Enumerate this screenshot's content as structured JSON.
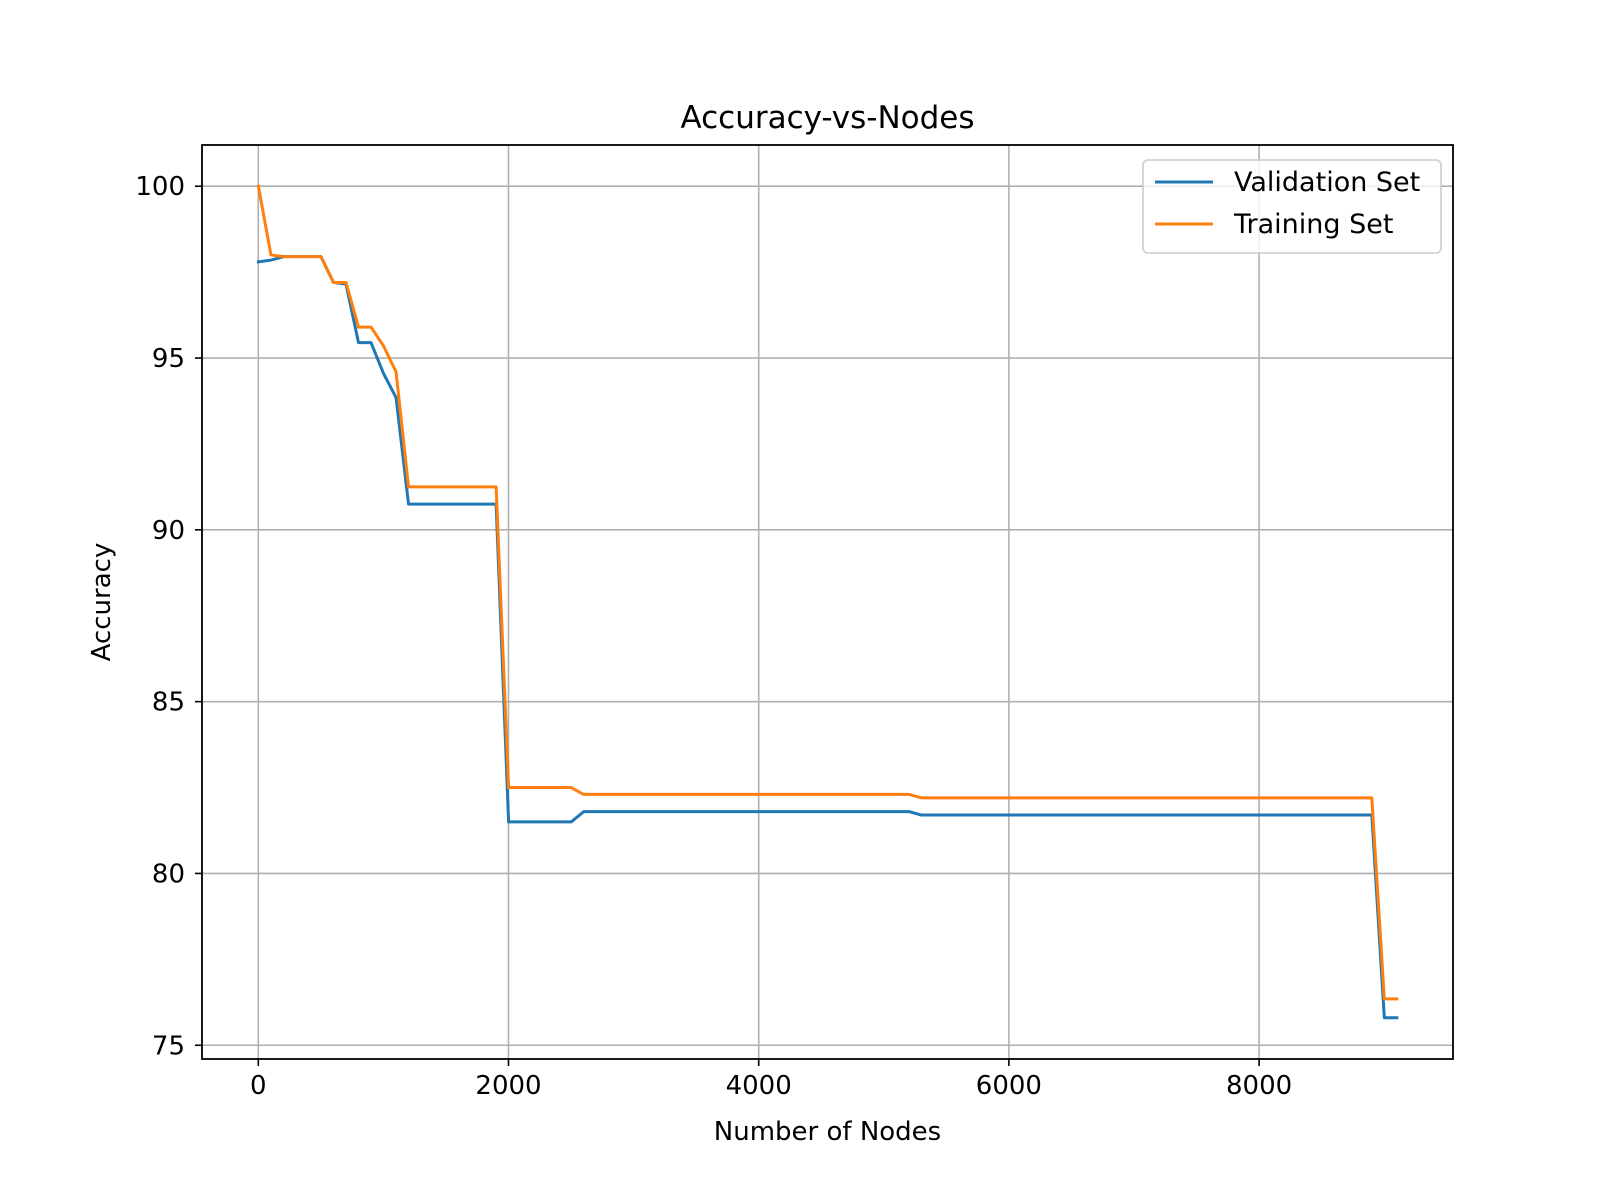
{
  "chart_data": {
    "type": "line",
    "title": "Accuracy-vs-Nodes",
    "xlabel": "Number of Nodes",
    "ylabel": "Accuracy",
    "xlim": [
      -450,
      9550
    ],
    "ylim": [
      74.6,
      101.2
    ],
    "xticks": [
      0,
      2000,
      4000,
      6000,
      8000
    ],
    "yticks": [
      75,
      80,
      85,
      90,
      95,
      100
    ],
    "grid": true,
    "legend_position": "upper right",
    "series": [
      {
        "name": "Validation Set",
        "color": "#1f77b4",
        "x": [
          1,
          101,
          201,
          301,
          401,
          501,
          601,
          701,
          801,
          901,
          1001,
          1101,
          1201,
          1301,
          1401,
          1501,
          1601,
          1701,
          1801,
          1901,
          2001,
          2101,
          2201,
          2301,
          2401,
          2501,
          2601,
          2701,
          3001,
          4001,
          5001,
          5201,
          5301,
          6001,
          7001,
          8001,
          8901,
          9001,
          9101
        ],
        "y": [
          97.8,
          97.85,
          97.95,
          97.95,
          97.95,
          97.95,
          97.2,
          97.15,
          95.45,
          95.45,
          94.55,
          93.85,
          90.75,
          90.75,
          90.75,
          90.75,
          90.75,
          90.75,
          90.75,
          90.75,
          81.5,
          81.5,
          81.5,
          81.5,
          81.5,
          81.5,
          81.8,
          81.8,
          81.8,
          81.8,
          81.8,
          81.8,
          81.7,
          81.7,
          81.7,
          81.7,
          81.7,
          75.8,
          75.8
        ]
      },
      {
        "name": "Training Set",
        "color": "#ff7f0e",
        "x": [
          1,
          101,
          201,
          301,
          401,
          501,
          601,
          701,
          801,
          901,
          1001,
          1101,
          1201,
          1301,
          1401,
          1501,
          1601,
          1701,
          1801,
          1901,
          2001,
          2101,
          2201,
          2301,
          2401,
          2501,
          2601,
          2701,
          3001,
          4001,
          5001,
          5201,
          5301,
          6001,
          7001,
          8001,
          8901,
          9001,
          9101
        ],
        "y": [
          100.0,
          98.0,
          97.95,
          97.95,
          97.95,
          97.95,
          97.2,
          97.2,
          95.9,
          95.9,
          95.35,
          94.6,
          91.25,
          91.25,
          91.25,
          91.25,
          91.25,
          91.25,
          91.25,
          91.25,
          82.5,
          82.5,
          82.5,
          82.5,
          82.5,
          82.5,
          82.3,
          82.3,
          82.3,
          82.3,
          82.3,
          82.3,
          82.2,
          82.2,
          82.2,
          82.2,
          82.2,
          76.35,
          76.35
        ]
      }
    ]
  }
}
